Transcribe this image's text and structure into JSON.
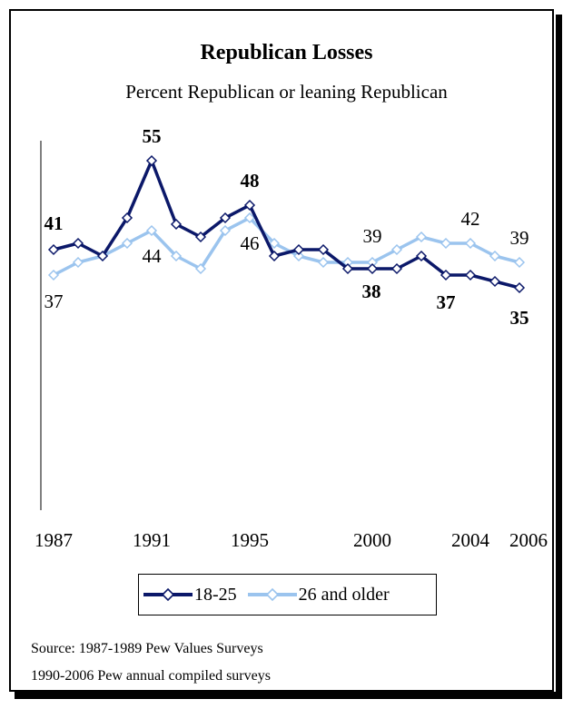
{
  "title": "Republican Losses",
  "subtitle": "Percent Republican or leaning Republican",
  "colors": {
    "series_1": "#0b1869",
    "series_2": "#9bc4ee"
  },
  "source_lines": [
    "Source: 1987-1989 Pew Values Surveys",
    "1990-2006 Pew annual compiled surveys"
  ],
  "chart_data": {
    "type": "line",
    "title": "Republican Losses",
    "subtitle": "Percent Republican or leaning Republican",
    "xlabel": "",
    "ylabel": "",
    "x": [
      1987,
      1988,
      1989,
      1990,
      1991,
      1992,
      1993,
      1994,
      1995,
      1996,
      1997,
      1998,
      1999,
      2000,
      2001,
      2002,
      2003,
      2004,
      2005,
      2006
    ],
    "x_tick_labels": [
      "1987",
      "1991",
      "1995",
      "2000",
      "2004",
      "2006"
    ],
    "ylim": [
      0,
      70
    ],
    "grid": false,
    "legend": "bottom",
    "series": [
      {
        "name": "18-25",
        "values": [
          41,
          42,
          40,
          46,
          55,
          45,
          43,
          46,
          48,
          40,
          41,
          41,
          38,
          38,
          38,
          40,
          37,
          37,
          36,
          35
        ]
      },
      {
        "name": "26 and older",
        "values": [
          37,
          39,
          40,
          42,
          44,
          40,
          38,
          44,
          46,
          42,
          40,
          39,
          39,
          39,
          41,
          43,
          42,
          42,
          40,
          39
        ]
      }
    ],
    "data_labels": [
      {
        "series": 0,
        "x": 1987,
        "text": "41"
      },
      {
        "series": 0,
        "x": 1991,
        "text": "55"
      },
      {
        "series": 0,
        "x": 1995,
        "text": "48"
      },
      {
        "series": 0,
        "x": 2000,
        "text": "38"
      },
      {
        "series": 0,
        "x": 2004,
        "text": "37"
      },
      {
        "series": 0,
        "x": 2006,
        "text": "35"
      },
      {
        "series": 1,
        "x": 1987,
        "text": "37"
      },
      {
        "series": 1,
        "x": 1991,
        "text": "44"
      },
      {
        "series": 1,
        "x": 1995,
        "text": "46"
      },
      {
        "series": 1,
        "x": 2000,
        "text": "39"
      },
      {
        "series": 1,
        "x": 2004,
        "text": "42"
      },
      {
        "series": 1,
        "x": 2006,
        "text": "39"
      }
    ]
  }
}
